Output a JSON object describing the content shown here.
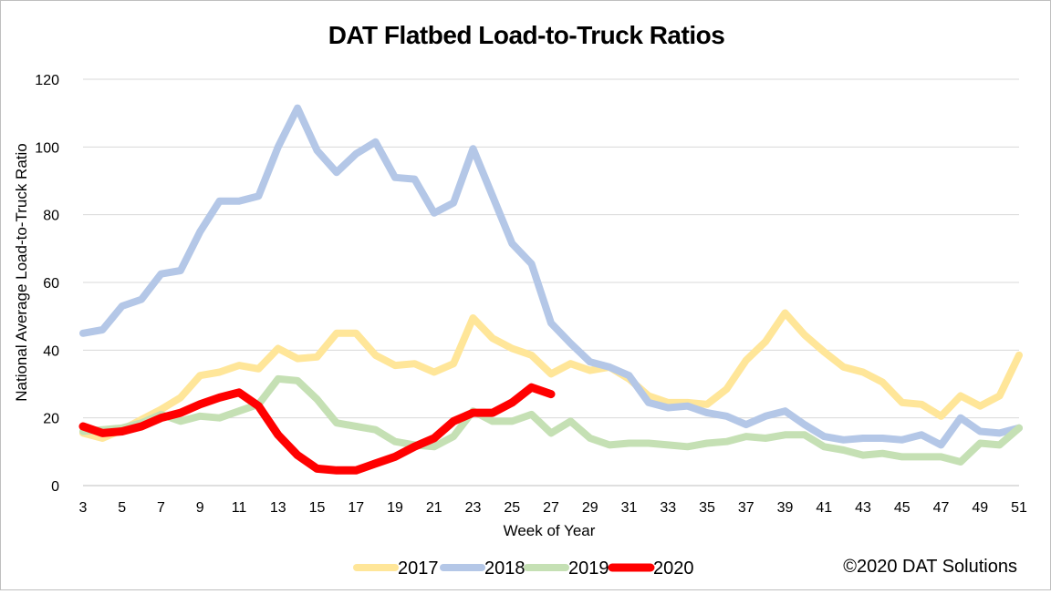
{
  "chart_data": {
    "type": "line",
    "title": "DAT Flatbed Load-to-Truck Ratios",
    "xlabel": "Week of Year",
    "ylabel": "National Average Load-to-Truck Ratio",
    "ylim": [
      0,
      120
    ],
    "yticks": [
      0,
      20,
      40,
      60,
      80,
      100,
      120
    ],
    "xlim": [
      3,
      51
    ],
    "xticks": [
      3,
      5,
      7,
      9,
      11,
      13,
      15,
      17,
      19,
      21,
      23,
      25,
      27,
      29,
      31,
      33,
      35,
      37,
      39,
      41,
      43,
      45,
      47,
      49,
      51
    ],
    "grid": "horizontal",
    "legend_position": "bottom",
    "x": [
      3,
      4,
      5,
      6,
      7,
      8,
      9,
      10,
      11,
      12,
      13,
      14,
      15,
      16,
      17,
      18,
      19,
      20,
      21,
      22,
      23,
      24,
      25,
      26,
      27,
      28,
      29,
      30,
      31,
      32,
      33,
      34,
      35,
      36,
      37,
      38,
      39,
      40,
      41,
      42,
      43,
      44,
      45,
      46,
      47,
      48,
      49,
      50,
      51
    ],
    "series": [
      {
        "name": "2017",
        "color": "#ffe699",
        "width": 8,
        "values": [
          15.5,
          14,
          16.5,
          19.5,
          22.5,
          26,
          32.5,
          33.5,
          35.5,
          34.5,
          40.5,
          37.5,
          38,
          45,
          45,
          38.5,
          35.5,
          36,
          33.5,
          36,
          49.5,
          43.5,
          40.5,
          38.5,
          33,
          36,
          34,
          35,
          31.5,
          26.5,
          24.5,
          24.5,
          24,
          28.5,
          37,
          42.5,
          51,
          44.5,
          39.5,
          35,
          33.5,
          30.5,
          24.5,
          24,
          20.5,
          26.5,
          23.5,
          26.5,
          38.5
        ]
      },
      {
        "name": "2018",
        "color": "#b4c7e7",
        "width": 8,
        "values": [
          45,
          46,
          53,
          55,
          62.5,
          63.5,
          75,
          84,
          84,
          85.5,
          100,
          111.5,
          99,
          92.5,
          98,
          101.5,
          91,
          90.5,
          80.5,
          83.5,
          99.5,
          85.5,
          71.5,
          65.5,
          48,
          42,
          36.5,
          35,
          32.5,
          24.5,
          23,
          23.5,
          21.5,
          20.5,
          18,
          20.5,
          22,
          18,
          14.5,
          13.5,
          14,
          14,
          13.5,
          15,
          12,
          20,
          16,
          15.5,
          17
        ]
      },
      {
        "name": "2019",
        "color": "#c5e0b4",
        "width": 8,
        "values": [
          16,
          16.5,
          17,
          18.5,
          21,
          19,
          20.5,
          20,
          22,
          24,
          31.5,
          31,
          25.5,
          18.5,
          17.5,
          16.5,
          13,
          12,
          11.5,
          14.5,
          22,
          19,
          19,
          21,
          15.5,
          19,
          14,
          12,
          12.5,
          12.5,
          12,
          11.5,
          12.5,
          13,
          14.5,
          14,
          15,
          15,
          11.5,
          10.5,
          9,
          9.5,
          8.5,
          8.5,
          8.5,
          7,
          12.5,
          12,
          17
        ]
      },
      {
        "name": "2020",
        "color": "#ff0000",
        "width": 9,
        "values": [
          17.5,
          15.5,
          16,
          17.5,
          20,
          21.5,
          24,
          26,
          27.5,
          23.5,
          15,
          9,
          5,
          4.5,
          4.5,
          6.5,
          8.5,
          11.5,
          14,
          19,
          21.5,
          21.5,
          24.5,
          29,
          27,
          null,
          null,
          null,
          null,
          null,
          null,
          null,
          null,
          null,
          null,
          null,
          null,
          null,
          null,
          null,
          null,
          null,
          null,
          null,
          null,
          null,
          null,
          null,
          null
        ]
      }
    ],
    "annotations": [
      "©2020 DAT Solutions"
    ]
  }
}
